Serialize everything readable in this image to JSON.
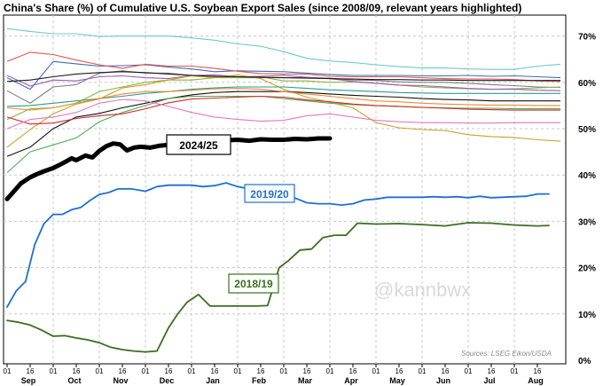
{
  "chart_data": {
    "type": "line",
    "title": "China's Share (%) of Cumulative U.S. Soybean Export Sales (since 2008/09, relevant years highlighted)",
    "ylim": [
      0,
      72
    ],
    "y_ticks": [
      "0%",
      "10%",
      "20%",
      "30%",
      "40%",
      "50%",
      "60%",
      "70%"
    ],
    "y_tick_values": [
      0,
      10,
      20,
      30,
      40,
      50,
      60,
      70
    ],
    "x_range": [
      0,
      24
    ],
    "x_day_labels": [
      "01",
      "16",
      "01",
      "16",
      "01",
      "16",
      "01",
      "16",
      "01",
      "16",
      "01",
      "16",
      "01",
      "16",
      "01",
      "16",
      "01",
      "16",
      "01",
      "16",
      "01",
      "16",
      "01",
      "16"
    ],
    "x_months": [
      "Sep",
      "Oct",
      "Nov",
      "Dec",
      "Jan",
      "Feb",
      "Mar",
      "Apr",
      "May",
      "Jun",
      "Jul",
      "Aug"
    ],
    "annotation": "@kannbwx",
    "source": "Sources: LSEG Eikon/USDA",
    "highlight_series": [
      {
        "name": "2024/25",
        "color": "#000000",
        "x": [
          0,
          0.3,
          0.6,
          1,
          1.3,
          1.6,
          2,
          2.4,
          2.8,
          3,
          3.4,
          3.7,
          4,
          4.3,
          4.6,
          4.9,
          5.2,
          5.5,
          5.8,
          6.2,
          6.6,
          7,
          7.5,
          8,
          8.5,
          9,
          9.5,
          10,
          10.5,
          11,
          11.5,
          12,
          12.5,
          13,
          13.5,
          14
        ],
        "y": [
          34.8,
          36.5,
          38.2,
          39.5,
          40.2,
          40.8,
          41.5,
          42.5,
          43.6,
          43.2,
          44.2,
          43.8,
          45.2,
          46.2,
          46.8,
          46.6,
          45.3,
          45.9,
          46.1,
          45.9,
          46.3,
          46.5,
          46.6,
          47.1,
          47.3,
          47.3,
          47.5,
          47.6,
          47.4,
          47.7,
          47.6,
          47.6,
          47.8,
          47.7,
          47.9,
          47.9
        ]
      },
      {
        "name": "2019/20",
        "color": "#1f6fd1",
        "x": [
          0,
          0.4,
          0.8,
          1.2,
          1.6,
          2,
          2.4,
          2.8,
          3.2,
          3.6,
          4,
          4.4,
          4.8,
          5.4,
          6,
          6.5,
          7,
          7.5,
          8,
          8.5,
          9,
          9.5,
          10,
          10.5,
          11,
          11.5,
          12,
          12.5,
          13,
          13.5,
          14,
          14.5,
          15,
          15.5,
          16,
          16.5,
          17,
          17.5,
          18,
          18.5,
          19,
          19.5,
          20,
          20.5,
          21,
          21.5,
          22,
          22.5,
          23,
          23.5
        ],
        "y": [
          11.5,
          15,
          17,
          25,
          29.5,
          31.5,
          31.5,
          32.5,
          33,
          34.5,
          35.8,
          36.2,
          37,
          37,
          36.5,
          37.5,
          37.8,
          37.8,
          37.8,
          37.5,
          37.7,
          38.3,
          37.5,
          37,
          37,
          36.3,
          35.2,
          35,
          34,
          33.8,
          33.8,
          33.5,
          33.8,
          34.6,
          34.8,
          35.2,
          35.2,
          35.2,
          35.2,
          35.3,
          35.2,
          35.3,
          35.1,
          35.4,
          35.1,
          35.2,
          35.3,
          35.4,
          35.9,
          35.9
        ]
      },
      {
        "name": "2018/19",
        "color": "#3a6e1f",
        "x": [
          0,
          0.5,
          1,
          1.5,
          2,
          2.5,
          3,
          3.5,
          4,
          4.5,
          5,
          5.5,
          6,
          6.5,
          7,
          7.4,
          7.8,
          8.3,
          8.8,
          9.3,
          9.8,
          10.3,
          10.8,
          11.3,
          11.8,
          12.2,
          12.7,
          13.2,
          13.7,
          14.2,
          14.7,
          15.2,
          16,
          17,
          18,
          19,
          20,
          21,
          22,
          23,
          23.5
        ],
        "y": [
          8.6,
          8.2,
          7.6,
          6.5,
          5.2,
          5.3,
          4.8,
          4.4,
          3.8,
          2.8,
          2.3,
          2,
          1.8,
          2,
          7,
          10,
          12.5,
          14.2,
          11.7,
          11.7,
          11.7,
          11.7,
          11.7,
          11.8,
          20,
          21.5,
          23.8,
          24,
          26.5,
          27,
          27,
          29.6,
          29.4,
          29.5,
          29.3,
          29.0,
          29.7,
          29.6,
          29.2,
          29.0,
          29.1
        ]
      }
    ],
    "background_series": [
      {
        "name": "bg-1",
        "color": "#6ec8cf",
        "x": [
          0,
          1,
          2,
          3,
          4,
          5,
          6,
          7,
          8,
          9,
          10,
          11,
          12,
          13,
          14,
          15,
          16,
          17,
          18,
          19,
          20,
          21,
          22,
          23,
          24
        ],
        "y": [
          71.6,
          71,
          70.5,
          70.5,
          69.9,
          70,
          70,
          70,
          69.6,
          69.1,
          68.3,
          67.8,
          66.6,
          65.2,
          64.6,
          64.3,
          63.8,
          63.4,
          63.1,
          63.1,
          62.9,
          62.8,
          62.8,
          63.5,
          63.9
        ]
      },
      {
        "name": "bg-2",
        "color": "#3d6db5",
        "x": [
          0,
          1,
          2,
          3,
          4,
          5,
          6,
          7,
          8,
          9,
          10,
          11,
          12,
          13,
          14,
          15,
          16,
          17,
          18,
          19,
          20,
          21,
          22,
          23,
          24
        ],
        "y": [
          61,
          58.5,
          64.5,
          64,
          63.5,
          63.6,
          63.8,
          63.3,
          62.9,
          62.3,
          62.5,
          62.4,
          62.3,
          62,
          61.7,
          61.5,
          61.5,
          61.5,
          61.4,
          61.4,
          61.5,
          61.3,
          61.4,
          61.2,
          61
        ]
      },
      {
        "name": "bg-3",
        "color": "#e8534d",
        "x": [
          0,
          1,
          2,
          3,
          4,
          5,
          6,
          7,
          8,
          9,
          10,
          11,
          12,
          13,
          14,
          15,
          16,
          17,
          18,
          19,
          20,
          21,
          22,
          23,
          24
        ],
        "y": [
          64.5,
          66.5,
          66,
          64.8,
          63.8,
          63,
          63.9,
          63.5,
          63.5,
          63,
          62.4,
          61.9,
          61.8,
          61.8,
          61.3,
          61.2,
          61.2,
          61.2,
          61,
          60.8,
          60.7,
          60.7,
          60.6,
          60.3,
          60.2
        ]
      },
      {
        "name": "bg-4",
        "color": "#7d7d7d",
        "x": [
          0,
          1,
          2,
          3,
          4,
          5,
          6,
          7,
          8,
          9,
          10,
          11,
          12,
          13,
          14,
          15,
          16,
          17,
          18,
          19,
          20,
          21,
          22,
          23,
          24
        ],
        "y": [
          58.2,
          55.5,
          59,
          59.5,
          62,
          62.5,
          62,
          62,
          61.5,
          61.2,
          61,
          61,
          61,
          61,
          60.9,
          60.5,
          60.4,
          60.1,
          60,
          60,
          59.8,
          59.5,
          59.3,
          59,
          58.9
        ]
      },
      {
        "name": "bg-5",
        "color": "#8fb33a",
        "x": [
          0,
          1,
          2,
          3,
          4,
          5,
          6,
          7,
          8,
          9,
          10,
          11,
          12,
          13,
          14,
          15,
          16,
          17,
          18,
          19,
          20,
          21,
          22,
          23,
          24
        ],
        "y": [
          52,
          54.3,
          54.5,
          55.5,
          58,
          59,
          60,
          60.5,
          60.5,
          61,
          61,
          61.2,
          60.3,
          60.3,
          60,
          60.1,
          59.8,
          59.4,
          59,
          58.8,
          58.6,
          58.5,
          58.6,
          58.8,
          59
        ]
      },
      {
        "name": "bg-6",
        "color": "#9b59b6",
        "x": [
          0,
          1,
          2,
          3,
          4,
          5,
          6,
          7,
          8,
          9,
          10,
          11,
          12,
          13,
          14,
          15,
          16,
          17,
          18,
          19,
          20,
          21,
          22,
          23,
          24
        ],
        "y": [
          61.5,
          59.2,
          60.5,
          60.3,
          61.2,
          61.4,
          61,
          60.8,
          61.5,
          61.6,
          61.2,
          61.3,
          61.5,
          61.1,
          60.8,
          60.2,
          59.8,
          59.4,
          59.3,
          59,
          58.7,
          58.5,
          58.5,
          58.3,
          58.2
        ]
      },
      {
        "name": "bg-7",
        "color": "#c9a227",
        "x": [
          0,
          1,
          2,
          3,
          4,
          5,
          6,
          7,
          8,
          9,
          10,
          11,
          12,
          13,
          14,
          15,
          16,
          17,
          18,
          19,
          20,
          21,
          22,
          23,
          24
        ],
        "y": [
          46,
          49.8,
          53.2,
          55.3,
          56.4,
          58.8,
          59.5,
          60.5,
          61.4,
          61,
          61.6,
          60.8,
          58.5,
          56.8,
          55.7,
          54.5,
          51.3,
          50.2,
          49.8,
          49.6,
          48.7,
          48.3,
          48.1,
          47.6,
          47.3
        ]
      },
      {
        "name": "bg-8",
        "color": "#2a9d8f",
        "x": [
          0,
          1,
          2,
          3,
          4,
          5,
          6,
          7,
          8,
          9,
          10,
          11,
          12,
          13,
          14,
          15,
          16,
          17,
          18,
          19,
          20,
          21,
          22,
          23,
          24
        ],
        "y": [
          54.8,
          55,
          55.5,
          56,
          56.5,
          57,
          57.6,
          58,
          58.5,
          58.8,
          59,
          59,
          59,
          58.7,
          58.4,
          58.2,
          58,
          57.8,
          57.7,
          57.6,
          57.6,
          57.6,
          57.6,
          57.6,
          57.6
        ]
      },
      {
        "name": "bg-9",
        "color": "#111111",
        "x": [
          0,
          1,
          2,
          3,
          4,
          5,
          6,
          7,
          8,
          9,
          10,
          11,
          12,
          13,
          14,
          15,
          16,
          17,
          18,
          19,
          20,
          21,
          22,
          23,
          24
        ],
        "y": [
          44,
          46,
          50,
          52.5,
          53.3,
          54.5,
          55.5,
          56.5,
          57.3,
          57.8,
          58,
          58,
          58,
          57.8,
          57.5,
          57.2,
          57,
          56.8,
          56.5,
          56.3,
          56.2,
          56,
          56,
          56,
          56
        ]
      },
      {
        "name": "bg-10",
        "color": "#f08a33",
        "x": [
          0,
          1,
          2,
          3,
          4,
          5,
          6,
          7,
          8,
          9,
          10,
          11,
          12,
          13,
          14,
          15,
          16,
          17,
          18,
          19,
          20,
          21,
          22,
          23,
          24
        ],
        "y": [
          54.5,
          54,
          54.5,
          55.5,
          56.5,
          57.5,
          58,
          58,
          58.3,
          58.6,
          58.7,
          58.5,
          58,
          57.5,
          57,
          56.5,
          56,
          55.8,
          55.5,
          55.3,
          55.2,
          55.1,
          55.1,
          55,
          55
        ]
      },
      {
        "name": "bg-11",
        "color": "#4caf50",
        "x": [
          0,
          1,
          2,
          3,
          4,
          5,
          6,
          7,
          8,
          9,
          10,
          11,
          12,
          13,
          14,
          15,
          16,
          17,
          18,
          19,
          20,
          21,
          22,
          23,
          24
        ],
        "y": [
          40.5,
          45,
          46.5,
          48,
          51.5,
          53.5,
          55,
          56.5,
          57,
          57,
          57,
          57,
          56.5,
          56,
          55.5,
          55.2,
          55,
          54.8,
          54.6,
          54.5,
          54.4,
          54.4,
          54.3,
          54.3,
          54.3
        ]
      },
      {
        "name": "bg-12",
        "color": "#d62828",
        "x": [
          0,
          1,
          2,
          3,
          4,
          5,
          6,
          7,
          8,
          9,
          10,
          11,
          12,
          13,
          14,
          15,
          16,
          17,
          18,
          19,
          20,
          21,
          22,
          23,
          24
        ],
        "y": [
          52.5,
          51,
          51.2,
          52.2,
          52.8,
          53.2,
          54.3,
          55.6,
          56.4,
          56.6,
          56.8,
          57,
          56.8,
          56.2,
          55.8,
          55.3,
          55,
          54.8,
          54.6,
          54.4,
          54.2,
          54.1,
          54,
          54,
          54
        ]
      },
      {
        "name": "bg-13",
        "color": "#e377c2",
        "x": [
          0,
          1,
          2,
          3,
          4,
          5,
          6,
          7,
          8,
          9,
          10,
          11,
          12,
          13,
          14,
          15,
          16,
          17,
          18,
          19,
          20,
          21,
          22,
          23,
          24
        ],
        "y": [
          50,
          52,
          52.5,
          53.5,
          55.5,
          56.3,
          56,
          54.8,
          53.5,
          52.5,
          52,
          51.6,
          51.8,
          52.8,
          53.2,
          52.5,
          51.8,
          51.5,
          51.3,
          51.3,
          51.2,
          51.2,
          51.3,
          51.3,
          51.3
        ]
      },
      {
        "name": "bg-14",
        "color": "#1a1a1a",
        "x": [
          0,
          1,
          2,
          3,
          4,
          5,
          6,
          7,
          8,
          9,
          10,
          11,
          12,
          13,
          14,
          15,
          16,
          17,
          18,
          19,
          20,
          21,
          22,
          23,
          24
        ],
        "y": [
          60.2,
          60.5,
          61.2,
          61.8,
          62.1,
          62.3,
          62.1,
          61.8,
          61.5,
          61.3,
          61.2,
          61.1,
          61,
          60.9,
          60.8,
          60.7,
          60.6,
          60.6,
          60.5,
          60.5,
          60.4,
          60.4,
          60.4,
          60.4,
          60.4
        ]
      }
    ]
  }
}
